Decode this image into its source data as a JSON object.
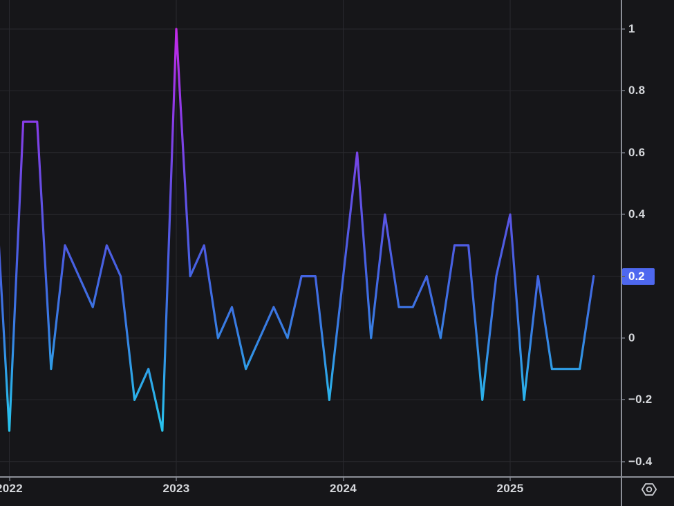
{
  "chart_data": {
    "type": "line",
    "title": "",
    "x_categories": [
      "2021-12",
      "2022-01",
      "2022-02",
      "2022-03",
      "2022-04",
      "2022-05",
      "2022-06",
      "2022-07",
      "2022-08",
      "2022-09",
      "2022-10",
      "2022-11",
      "2022-12",
      "2023-01",
      "2023-02",
      "2023-03",
      "2023-04",
      "2023-05",
      "2023-06",
      "2023-07",
      "2023-08",
      "2023-09",
      "2023-10",
      "2023-11",
      "2023-12",
      "2024-01",
      "2024-02",
      "2024-03",
      "2024-04",
      "2024-05",
      "2024-06",
      "2024-07",
      "2024-08",
      "2024-09",
      "2024-10",
      "2024-11",
      "2024-12",
      "2025-01",
      "2025-02",
      "2025-03",
      "2025-04",
      "2025-05",
      "2025-06",
      "2025-07"
    ],
    "values": [
      0.5,
      -0.3,
      0.7,
      0.7,
      -0.1,
      0.3,
      0.2,
      0.1,
      0.3,
      0.2,
      -0.2,
      -0.1,
      -0.3,
      1,
      0.2,
      0.3,
      0,
      0.1,
      -0.1,
      0,
      0.1,
      0,
      0.2,
      0.2,
      -0.2,
      0.2,
      0.6,
      0,
      0.4,
      0.1,
      0.1,
      0.2,
      0,
      0.3,
      0.3,
      -0.2,
      0.2,
      0.4,
      -0.2,
      0.2,
      -0.1,
      -0.1,
      -0.1,
      0.2
    ],
    "y_ticks": [
      {
        "label": "1",
        "value": 1
      },
      {
        "label": "0.8",
        "value": 0.8
      },
      {
        "label": "0.6",
        "value": 0.6
      },
      {
        "label": "0.4",
        "value": 0.4
      },
      {
        "label": "0.2",
        "value": 0.2
      },
      {
        "label": "0",
        "value": 0
      },
      {
        "label": "−0.2",
        "value": -0.2
      },
      {
        "label": "−0.4",
        "value": -0.4
      }
    ],
    "x_ticks": [
      {
        "label": "2022",
        "index": 1
      },
      {
        "label": "2023",
        "index": 13
      },
      {
        "label": "2024",
        "index": 25
      },
      {
        "label": "2025",
        "index": 37
      }
    ],
    "last_price": {
      "label": "0.2",
      "value": 0.2
    },
    "ylim": [
      -0.45,
      1.05
    ],
    "grid": true,
    "legend": "none",
    "colors": {
      "background": "#161619",
      "grid": "#29292e",
      "axis_text": "#d6d8dc",
      "separator": "#8c8f97",
      "badge_bg": "#4e68ef",
      "badge_text": "#ffffff",
      "gradient_stops": [
        {
          "value": 1.0,
          "color": "#c32ae8"
        },
        {
          "value": 0.72,
          "color": "#8b3be8"
        },
        {
          "value": 0.45,
          "color": "#6150e4"
        },
        {
          "value": 0.22,
          "color": "#4562e2"
        },
        {
          "value": 0.02,
          "color": "#377ee2"
        },
        {
          "value": -0.13,
          "color": "#2da6e8"
        },
        {
          "value": -0.32,
          "color": "#27c8ee"
        }
      ]
    },
    "icons": {
      "corner": "gear-icon"
    }
  }
}
